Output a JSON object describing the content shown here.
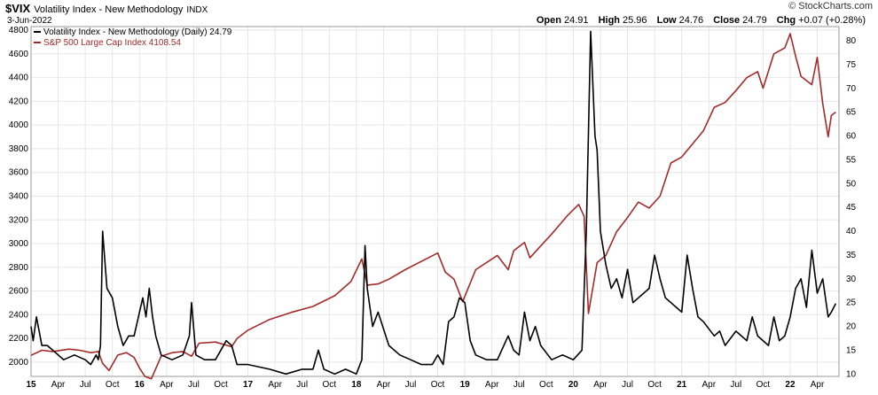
{
  "header": {
    "symbol": "$VIX",
    "name": "Volatility Index - New Methodology",
    "exchange": "INDX",
    "date": "3-Jun-2022",
    "brand": "© StockCharts.com",
    "open_label": "Open",
    "open": "24.91",
    "high_label": "High",
    "high": "25.96",
    "low_label": "Low",
    "low": "24.76",
    "close_label": "Close",
    "close": "24.79",
    "chg_label": "Chg",
    "chg": "+0.07 (+0.28%)"
  },
  "legend": {
    "vix": "Volatility Index - New Methodology (Daily) 24.79",
    "spx": "S&P 500 Large Cap Index 4108.54"
  },
  "colors": {
    "vix": "#000000",
    "spx": "#a52a2a",
    "grid": "#e6e6e6",
    "frame": "#999999"
  },
  "chart_data": {
    "type": "line",
    "x_ticks": [
      "15",
      "Apr",
      "Jul",
      "Oct",
      "16",
      "Apr",
      "Jul",
      "Oct",
      "17",
      "Apr",
      "Jul",
      "Oct",
      "18",
      "Apr",
      "Jul",
      "Oct",
      "19",
      "Apr",
      "Jul",
      "Oct",
      "20",
      "Apr",
      "Jul",
      "Oct",
      "21",
      "Apr",
      "Jul",
      "Oct",
      "22",
      "Apr"
    ],
    "left_axis": {
      "ylim": [
        1880,
        4830
      ],
      "ticks": [
        2000,
        2200,
        2400,
        2600,
        2800,
        3000,
        3200,
        3400,
        3600,
        3800,
        4000,
        4200,
        4400,
        4600,
        4800
      ]
    },
    "right_axis": {
      "ylim": [
        9.5,
        83
      ],
      "ticks": [
        10,
        15,
        20,
        25,
        30,
        35,
        40,
        45,
        50,
        55,
        60,
        65,
        70,
        75,
        80
      ]
    },
    "series": [
      {
        "name": "S&P 500 Large Cap Index",
        "axis": "left",
        "x": [
          2015.0,
          2015.1,
          2015.2,
          2015.35,
          2015.45,
          2015.55,
          2015.62,
          2015.66,
          2015.72,
          2015.8,
          2015.88,
          2015.95,
          2016.0,
          2016.05,
          2016.11,
          2016.2,
          2016.3,
          2016.4,
          2016.48,
          2016.55,
          2016.7,
          2016.85,
          2016.9,
          2017.0,
          2017.2,
          2017.4,
          2017.6,
          2017.8,
          2017.95,
          2018.05,
          2018.1,
          2018.2,
          2018.3,
          2018.45,
          2018.6,
          2018.75,
          2018.82,
          2018.9,
          2018.98,
          2019.1,
          2019.3,
          2019.4,
          2019.45,
          2019.55,
          2019.6,
          2019.7,
          2019.8,
          2019.95,
          2020.05,
          2020.1,
          2020.14,
          2020.22,
          2020.3,
          2020.4,
          2020.5,
          2020.6,
          2020.7,
          2020.8,
          2020.9,
          2021.0,
          2021.2,
          2021.3,
          2021.4,
          2021.5,
          2021.6,
          2021.7,
          2021.75,
          2021.85,
          2021.95,
          2022.0,
          2022.05,
          2022.1,
          2022.2,
          2022.25,
          2022.3,
          2022.35,
          2022.38,
          2022.42
        ],
        "values": [
          2058,
          2100,
          2090,
          2110,
          2100,
          2080,
          2090,
          1990,
          1930,
          2060,
          2080,
          2040,
          1950,
          1880,
          1860,
          2050,
          2080,
          2090,
          2050,
          2160,
          2170,
          2130,
          2200,
          2270,
          2360,
          2420,
          2470,
          2560,
          2680,
          2870,
          2650,
          2660,
          2700,
          2780,
          2850,
          2920,
          2760,
          2700,
          2510,
          2780,
          2900,
          2780,
          2940,
          3010,
          2880,
          2980,
          3080,
          3240,
          3330,
          3230,
          2410,
          2840,
          2900,
          3100,
          3220,
          3350,
          3300,
          3400,
          3680,
          3730,
          3950,
          4150,
          4190,
          4290,
          4400,
          4450,
          4310,
          4600,
          4650,
          4770,
          4580,
          4410,
          4340,
          4570,
          4180,
          3900,
          4080,
          4108.54
        ]
      },
      {
        "name": "Volatility Index - New Methodology",
        "axis": "right",
        "x": [
          2015.0,
          2015.02,
          2015.05,
          2015.1,
          2015.15,
          2015.2,
          2015.3,
          2015.4,
          2015.5,
          2015.55,
          2015.6,
          2015.62,
          2015.64,
          2015.66,
          2015.7,
          2015.75,
          2015.8,
          2015.85,
          2015.9,
          2015.95,
          2016.0,
          2016.03,
          2016.06,
          2016.09,
          2016.12,
          2016.15,
          2016.2,
          2016.3,
          2016.4,
          2016.46,
          2016.48,
          2016.52,
          2016.6,
          2016.7,
          2016.8,
          2016.85,
          2016.9,
          2017.0,
          2017.2,
          2017.35,
          2017.5,
          2017.6,
          2017.65,
          2017.7,
          2017.8,
          2017.9,
          2018.0,
          2018.05,
          2018.08,
          2018.1,
          2018.15,
          2018.2,
          2018.3,
          2018.4,
          2018.5,
          2018.6,
          2018.7,
          2018.75,
          2018.8,
          2018.85,
          2018.9,
          2018.95,
          2019.0,
          2019.05,
          2019.1,
          2019.2,
          2019.3,
          2019.4,
          2019.45,
          2019.5,
          2019.55,
          2019.6,
          2019.65,
          2019.7,
          2019.8,
          2019.9,
          2020.0,
          2020.08,
          2020.12,
          2020.16,
          2020.2,
          2020.22,
          2020.25,
          2020.3,
          2020.35,
          2020.4,
          2020.45,
          2020.5,
          2020.55,
          2020.6,
          2020.7,
          2020.75,
          2020.8,
          2020.85,
          2020.9,
          2021.0,
          2021.05,
          2021.1,
          2021.15,
          2021.2,
          2021.3,
          2021.35,
          2021.4,
          2021.5,
          2021.6,
          2021.65,
          2021.7,
          2021.8,
          2021.85,
          2021.9,
          2021.95,
          2022.0,
          2022.05,
          2022.1,
          2022.15,
          2022.2,
          2022.25,
          2022.3,
          2022.35,
          2022.38,
          2022.42
        ],
        "values": [
          20,
          17,
          22,
          16,
          16,
          15,
          13,
          14,
          13,
          12,
          14,
          13,
          16,
          40,
          28,
          26,
          20,
          16,
          18,
          18,
          23,
          26,
          22,
          28,
          22,
          18,
          14,
          13,
          14,
          18,
          25,
          14,
          13,
          13,
          17,
          16,
          12,
          12,
          11,
          10,
          11,
          11,
          15,
          11,
          10,
          11,
          10,
          13,
          37,
          28,
          20,
          23,
          16,
          14,
          13,
          12,
          12,
          14,
          12,
          21,
          22,
          26,
          25,
          17,
          14,
          13,
          13,
          18,
          15,
          14,
          23,
          17,
          20,
          16,
          13,
          14,
          13,
          15,
          40,
          82,
          60,
          57,
          40,
          33,
          28,
          30,
          26,
          32,
          25,
          26,
          28,
          35,
          30,
          26,
          25,
          23,
          35,
          28,
          22,
          21,
          18,
          19,
          16,
          19,
          17,
          22,
          18,
          16,
          22,
          17,
          18,
          22,
          28,
          30,
          24,
          36,
          27,
          30,
          22,
          23,
          24.79
        ]
      }
    ]
  }
}
